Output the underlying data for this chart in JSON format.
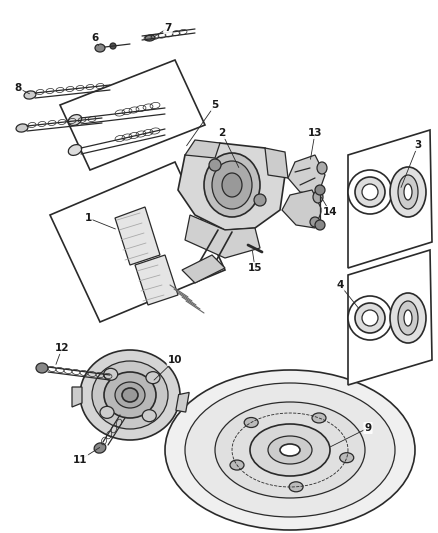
{
  "background_color": "#ffffff",
  "line_color": "#2a2a2a",
  "label_color": "#1a1a1a",
  "fig_width": 4.38,
  "fig_height": 5.33,
  "dpi": 100
}
